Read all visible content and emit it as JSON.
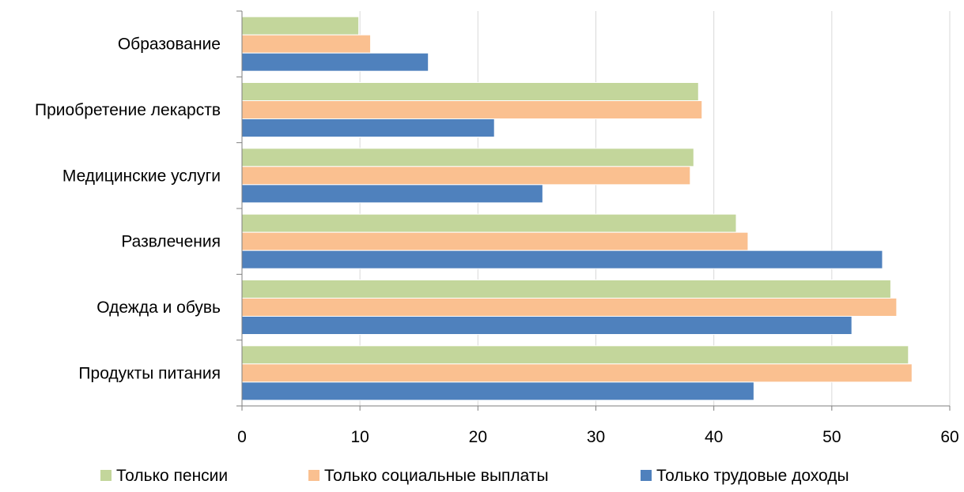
{
  "chart_data": {
    "type": "bar",
    "orientation": "horizontal",
    "categories": [
      "Образование",
      "Приобретение лекарств",
      "Медицинские услуги",
      "Развлечения",
      "Одежда и обувь",
      "Продукты питания"
    ],
    "series": [
      {
        "name": "Только пенсии",
        "color": "#c3d69b",
        "values": [
          9.9,
          38.7,
          38.3,
          41.9,
          55.0,
          56.5
        ]
      },
      {
        "name": "Только социальные выплаты",
        "color": "#fac090",
        "values": [
          10.9,
          39.0,
          38.0,
          42.9,
          55.5,
          56.8
        ]
      },
      {
        "name": "Только трудовые доходы",
        "color": "#4f81bd",
        "values": [
          15.8,
          21.4,
          25.5,
          54.3,
          51.7,
          43.4
        ]
      }
    ],
    "xlim": [
      0,
      60
    ],
    "xticks": [
      0,
      10,
      20,
      30,
      40,
      50,
      60
    ],
    "grid": "vertical",
    "legend_position": "bottom",
    "title": "",
    "xlabel": "",
    "ylabel": ""
  }
}
